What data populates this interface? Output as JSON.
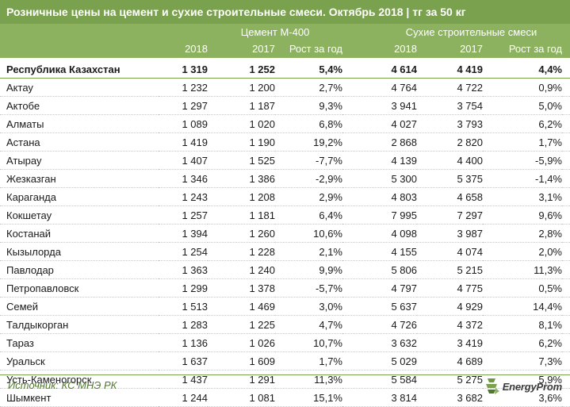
{
  "title": "Розничные цены на цемент и сухие строительные смеси. Октябрь 2018 | тг за 50 кг",
  "header": {
    "cement_group": "Цемент М-400",
    "dry_mix_group": "Сухие строительные смеси",
    "col_2018": "2018",
    "col_2017": "2017",
    "col_growth": "Рост за год"
  },
  "rows": [
    {
      "region": "Республика Казахстан",
      "c2018": "1 319",
      "c2017": "1 252",
      "cg": "5,4%",
      "d2018": "4 614",
      "d2017": "4 419",
      "dg": "4,4%"
    },
    {
      "region": "Актау",
      "c2018": "1 232",
      "c2017": "1 200",
      "cg": "2,7%",
      "d2018": "4 764",
      "d2017": "4 722",
      "dg": "0,9%"
    },
    {
      "region": "Актобе",
      "c2018": "1 297",
      "c2017": "1 187",
      "cg": "9,3%",
      "d2018": "3 941",
      "d2017": "3 754",
      "dg": "5,0%"
    },
    {
      "region": "Алматы",
      "c2018": "1 089",
      "c2017": "1 020",
      "cg": "6,8%",
      "d2018": "4 027",
      "d2017": "3 793",
      "dg": "6,2%"
    },
    {
      "region": "Астана",
      "c2018": "1 419",
      "c2017": "1 190",
      "cg": "19,2%",
      "d2018": "2 868",
      "d2017": "2 820",
      "dg": "1,7%"
    },
    {
      "region": "Атырау",
      "c2018": "1 407",
      "c2017": "1 525",
      "cg": "-7,7%",
      "d2018": "4 139",
      "d2017": "4 400",
      "dg": "-5,9%"
    },
    {
      "region": "Жезказган",
      "c2018": "1 346",
      "c2017": "1 386",
      "cg": "-2,9%",
      "d2018": "5 300",
      "d2017": "5 375",
      "dg": "-1,4%"
    },
    {
      "region": "Караганда",
      "c2018": "1 243",
      "c2017": "1 208",
      "cg": "2,9%",
      "d2018": "4 803",
      "d2017": "4 658",
      "dg": "3,1%"
    },
    {
      "region": "Кокшетау",
      "c2018": "1 257",
      "c2017": "1 181",
      "cg": "6,4%",
      "d2018": "7 995",
      "d2017": "7 297",
      "dg": "9,6%"
    },
    {
      "region": "Костанай",
      "c2018": "1 394",
      "c2017": "1 260",
      "cg": "10,6%",
      "d2018": "4 098",
      "d2017": "3 987",
      "dg": "2,8%"
    },
    {
      "region": "Кызылорда",
      "c2018": "1 254",
      "c2017": "1 228",
      "cg": "2,1%",
      "d2018": "4 155",
      "d2017": "4 074",
      "dg": "2,0%"
    },
    {
      "region": "Павлодар",
      "c2018": "1 363",
      "c2017": "1 240",
      "cg": "9,9%",
      "d2018": "5 806",
      "d2017": "5 215",
      "dg": "11,3%"
    },
    {
      "region": "Петропавловск",
      "c2018": "1 299",
      "c2017": "1 378",
      "cg": "-5,7%",
      "d2018": "4 797",
      "d2017": "4 775",
      "dg": "0,5%"
    },
    {
      "region": "Семей",
      "c2018": "1 513",
      "c2017": "1 469",
      "cg": "3,0%",
      "d2018": "5 637",
      "d2017": "4 929",
      "dg": "14,4%"
    },
    {
      "region": "Талдыкорган",
      "c2018": "1 283",
      "c2017": "1 225",
      "cg": "4,7%",
      "d2018": "4 726",
      "d2017": "4 372",
      "dg": "8,1%"
    },
    {
      "region": "Тараз",
      "c2018": "1 136",
      "c2017": "1 026",
      "cg": "10,7%",
      "d2018": "3 632",
      "d2017": "3 419",
      "dg": "6,2%"
    },
    {
      "region": "Уральск",
      "c2018": "1 637",
      "c2017": "1 609",
      "cg": "1,7%",
      "d2018": "5 029",
      "d2017": "4 689",
      "dg": "7,3%"
    },
    {
      "region": "Усть-Каменогорск",
      "c2018": "1 437",
      "c2017": "1 291",
      "cg": "11,3%",
      "d2018": "5 584",
      "d2017": "5 275",
      "dg": "5,9%"
    },
    {
      "region": "Шымкент",
      "c2018": "1 244",
      "c2017": "1 081",
      "cg": "15,1%",
      "d2018": "3 814",
      "d2017": "3 682",
      "dg": "3,6%"
    }
  ],
  "source": "Источник: КС МНЭ РК",
  "logo": {
    "text": "EnergyProm",
    "icon": "energyprom-logo-icon"
  },
  "colors": {
    "header_dark": "#7aa14d",
    "header_light": "#8cb25f",
    "source_text": "#4e7a2a"
  }
}
